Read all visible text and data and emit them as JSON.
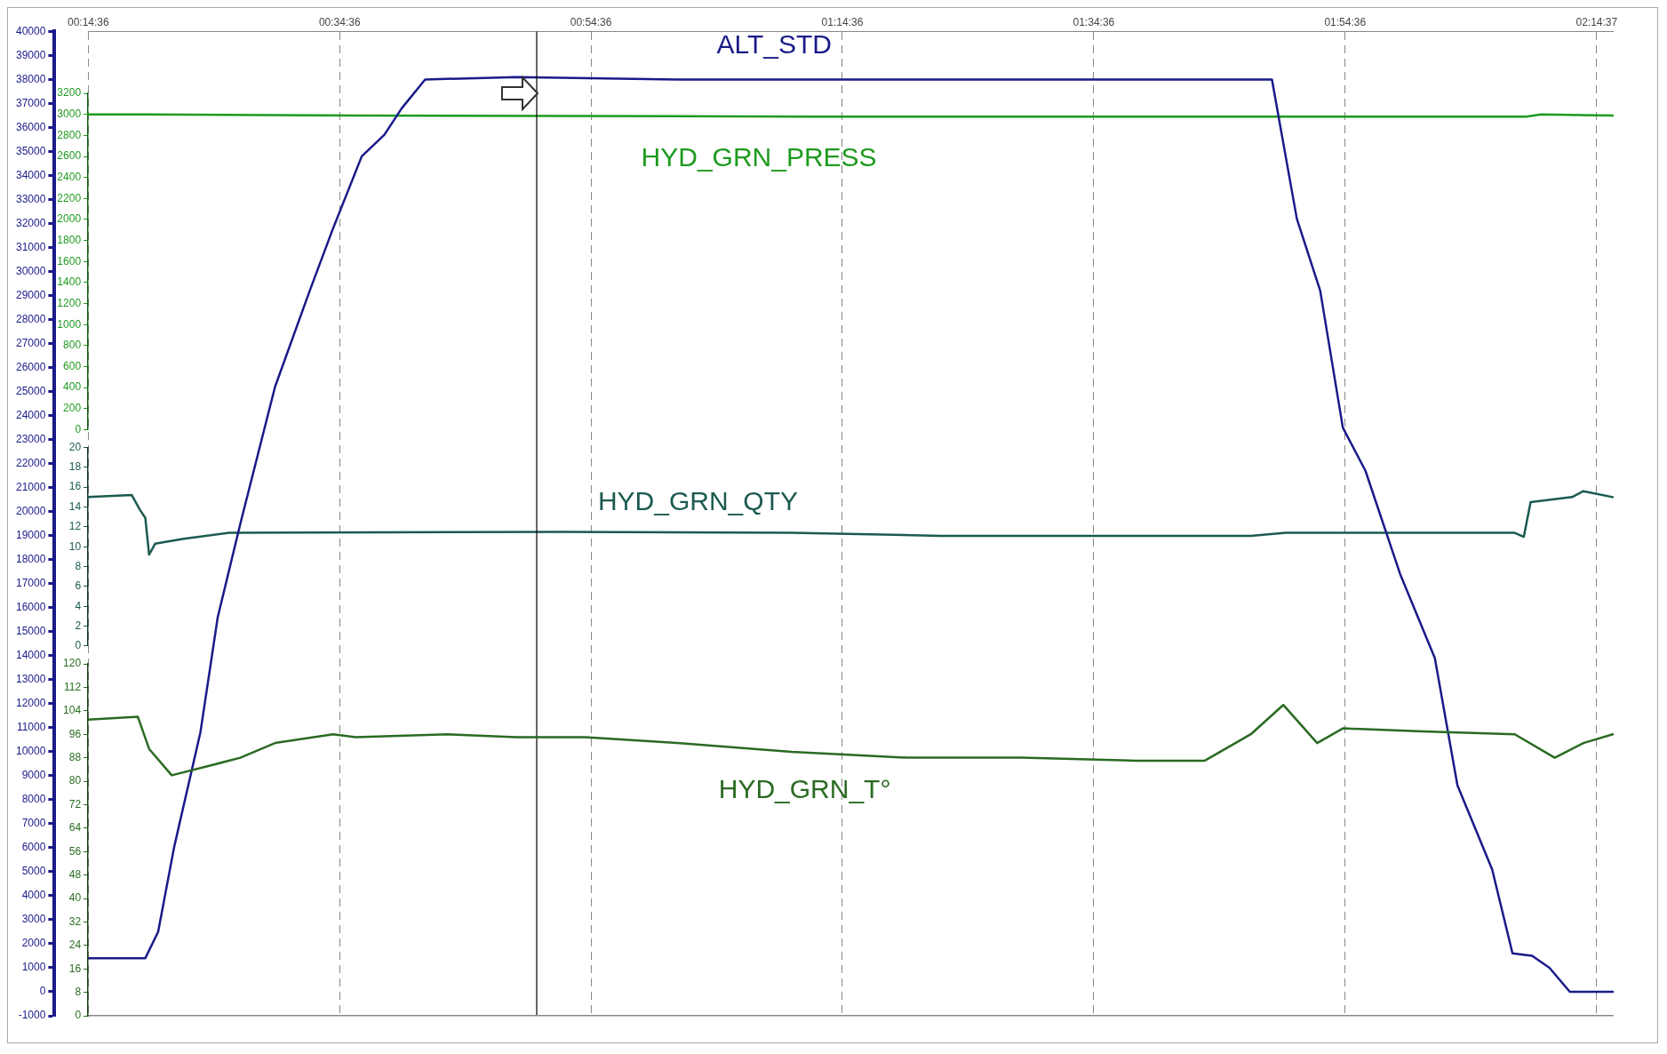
{
  "chart_data": [
    {
      "type": "line",
      "xlim": [
        0.243,
        2.265
      ],
      "xticks": [
        {
          "value": 0.2433,
          "label": "00:14:36"
        },
        {
          "value": 0.5767,
          "label": "00:34:36"
        },
        {
          "value": 0.91,
          "label": "00:54:36"
        },
        {
          "value": 1.2433,
          "label": "01:14:36"
        },
        {
          "value": 1.5767,
          "label": "01:34:36"
        },
        {
          "value": 1.91,
          "label": "01:54:36"
        },
        {
          "value": 2.2436,
          "label": "02:14:37"
        }
      ],
      "ylim": [
        -1000,
        40000
      ],
      "yticks": [
        -1000,
        0,
        1000,
        2000,
        3000,
        4000,
        5000,
        6000,
        7000,
        8000,
        9000,
        10000,
        11000,
        12000,
        13000,
        14000,
        15000,
        16000,
        17000,
        18000,
        19000,
        20000,
        21000,
        22000,
        23000,
        24000,
        25000,
        26000,
        27000,
        28000,
        29000,
        30000,
        31000,
        32000,
        33000,
        34000,
        35000,
        36000,
        37000,
        38000,
        39000,
        40000
      ],
      "y2lim": [
        0,
        3200
      ],
      "y2ticks": [
        0,
        200,
        400,
        600,
        800,
        1000,
        1200,
        1400,
        1600,
        1800,
        2000,
        2200,
        2400,
        2600,
        2800,
        3000,
        3200
      ],
      "y3lim": [
        0,
        20
      ],
      "y3ticks": [
        0,
        2,
        4,
        6,
        8,
        10,
        12,
        14,
        16,
        18,
        20
      ],
      "grid": "x",
      "ref_lines": [
        {
          "axis": "x",
          "value": 0.838,
          "color": "#000000"
        }
      ],
      "series": [
        {
          "name": "ALT_STD",
          "color": "#1a1a8a",
          "axis": "y",
          "x": [
            0.243,
            0.319,
            0.336,
            0.357,
            0.392,
            0.415,
            0.445,
            0.491,
            0.537,
            0.568,
            0.606,
            0.636,
            0.659,
            0.69,
            0.811,
            1.024,
            1.329,
            1.633,
            1.813,
            1.846,
            1.877,
            1.907,
            1.937,
            1.983,
            2.029,
            2.059,
            2.105,
            2.132,
            2.158,
            2.181,
            2.208,
            2.265
          ],
          "values": [
            1400,
            1400,
            2500,
            6000,
            10800,
            15600,
            19500,
            25200,
            29200,
            31800,
            34800,
            35700,
            36800,
            38000,
            38100,
            38000,
            38000,
            38000,
            38000,
            32200,
            29200,
            23500,
            21700,
            17400,
            13900,
            8600,
            5100,
            1600,
            1500,
            1000,
            0,
            0
          ]
        },
        {
          "name": "HYD_GRN_PRESS",
          "color": "#1e9a1e",
          "axis": "y2",
          "x": [
            0.243,
            0.319,
            0.6,
            1.2,
            1.8,
            2.15,
            2.17,
            2.265
          ],
          "values": [
            3000,
            3000,
            2990,
            2980,
            2980,
            2980,
            3000,
            2990
          ]
        },
        {
          "name": "HYD_GRN_QTY",
          "color": "#1b5a50",
          "axis": "y3",
          "x": [
            0.243,
            0.301,
            0.312,
            0.319,
            0.324,
            0.332,
            0.37,
            0.43,
            0.872,
            1.176,
            1.374,
            1.785,
            1.831,
            2.135,
            2.147,
            2.156,
            2.211,
            2.226,
            2.265
          ],
          "values": [
            15.0,
            15.2,
            13.7,
            12.9,
            9.2,
            10.3,
            10.8,
            11.4,
            11.5,
            11.4,
            11.1,
            11.1,
            11.4,
            11.4,
            11.0,
            14.5,
            15.0,
            15.6,
            15.0
          ]
        }
      ]
    },
    {
      "type": "line",
      "xlim": [
        0.243,
        2.265
      ],
      "tick_labels": "y",
      "ylim": [
        0,
        120
      ],
      "yticks": [
        0,
        8,
        16,
        24,
        32,
        40,
        48,
        56,
        64,
        72,
        80,
        88,
        96,
        104,
        112,
        120
      ],
      "series": [
        {
          "name": "HYD_GRN_T°",
          "color": "#2a6a22",
          "x": [
            0.243,
            0.309,
            0.324,
            0.354,
            0.4,
            0.445,
            0.491,
            0.568,
            0.598,
            0.72,
            0.811,
            0.902,
            1.024,
            1.176,
            1.329,
            1.481,
            1.633,
            1.724,
            1.785,
            1.828,
            1.873,
            1.907,
            2.013,
            2.135,
            2.188,
            2.226,
            2.265
          ],
          "values": [
            101,
            102,
            91,
            82,
            85,
            88,
            93,
            96,
            95,
            96,
            95,
            95,
            93,
            90,
            88,
            88,
            87,
            87,
            96,
            106,
            93,
            98,
            97,
            96,
            88,
            93,
            96
          ]
        }
      ]
    }
  ]
}
